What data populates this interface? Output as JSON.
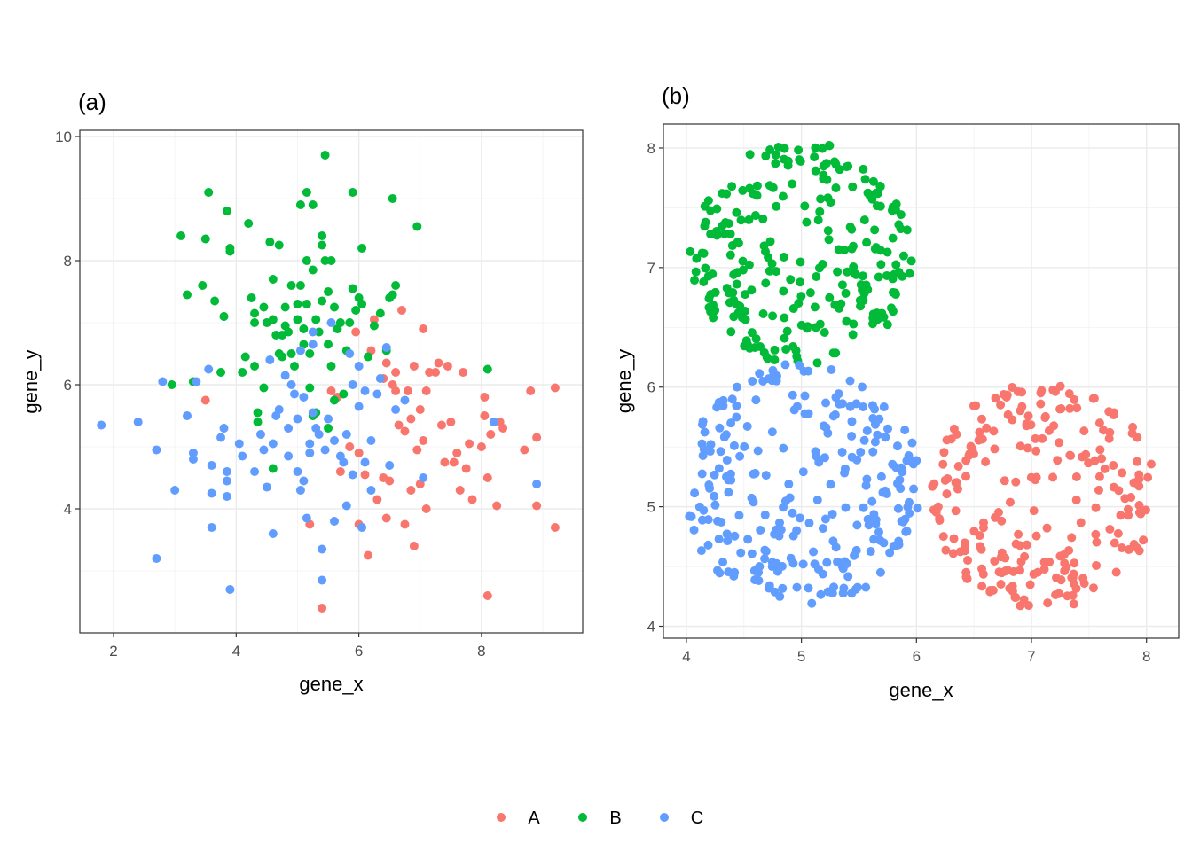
{
  "colors": {
    "A": "#F8766D",
    "B": "#00BA38",
    "C": "#619CFF"
  },
  "legend": {
    "items": [
      {
        "key": "A",
        "label": "A"
      },
      {
        "key": "B",
        "label": "B"
      },
      {
        "key": "C",
        "label": "C"
      }
    ],
    "position": "bottom"
  },
  "chart_data": [
    {
      "type": "scatter",
      "title": "(a)",
      "xlabel": "gene_x",
      "ylabel": "gene_y",
      "xlim": [
        1.45,
        9.65
      ],
      "ylim": [
        2.0,
        10.1
      ],
      "xticks": [
        2,
        4,
        6,
        8
      ],
      "yticks": [
        4,
        6,
        8,
        10
      ],
      "grid": true,
      "series": [
        {
          "name": "A",
          "points": [
            [
              3.5,
              5.75
            ],
            [
              5.4,
              2.4
            ],
            [
              5.2,
              3.75
            ],
            [
              6.0,
              3.75
            ],
            [
              6.15,
              3.25
            ],
            [
              5.55,
              5.9
            ],
            [
              5.65,
              5.8
            ],
            [
              5.7,
              4.6
            ],
            [
              5.85,
              5.0
            ],
            [
              5.95,
              6.85
            ],
            [
              6.0,
              4.9
            ],
            [
              6.1,
              4.55
            ],
            [
              6.25,
              7.05
            ],
            [
              6.3,
              4.15
            ],
            [
              6.4,
              4.5
            ],
            [
              6.45,
              3.85
            ],
            [
              6.45,
              6.35
            ],
            [
              6.5,
              4.45
            ],
            [
              6.6,
              6.2
            ],
            [
              6.6,
              5.9
            ],
            [
              6.65,
              5.35
            ],
            [
              6.7,
              7.2
            ],
            [
              6.75,
              5.25
            ],
            [
              6.75,
              3.75
            ],
            [
              6.8,
              5.9
            ],
            [
              6.85,
              5.45
            ],
            [
              6.85,
              4.3
            ],
            [
              6.9,
              3.4
            ],
            [
              6.9,
              6.3
            ],
            [
              6.95,
              4.95
            ],
            [
              7.0,
              5.6
            ],
            [
              7.0,
              4.4
            ],
            [
              7.05,
              6.9
            ],
            [
              7.05,
              5.1
            ],
            [
              7.1,
              5.9
            ],
            [
              7.1,
              4.0
            ],
            [
              7.25,
              6.2
            ],
            [
              7.3,
              6.35
            ],
            [
              7.35,
              5.35
            ],
            [
              7.4,
              4.75
            ],
            [
              7.45,
              6.3
            ],
            [
              7.5,
              5.4
            ],
            [
              7.55,
              4.75
            ],
            [
              7.6,
              4.9
            ],
            [
              7.65,
              4.3
            ],
            [
              7.7,
              6.2
            ],
            [
              7.75,
              4.65
            ],
            [
              7.8,
              5.05
            ],
            [
              7.85,
              4.15
            ],
            [
              8.0,
              5.0
            ],
            [
              8.05,
              5.8
            ],
            [
              8.05,
              5.5
            ],
            [
              8.1,
              2.6
            ],
            [
              8.1,
              4.5
            ],
            [
              8.15,
              5.2
            ],
            [
              8.25,
              4.05
            ],
            [
              8.3,
              5.4
            ],
            [
              8.35,
              5.3
            ],
            [
              8.7,
              4.95
            ],
            [
              8.8,
              5.9
            ],
            [
              8.9,
              5.15
            ],
            [
              8.9,
              4.05
            ],
            [
              9.2,
              5.95
            ],
            [
              9.2,
              3.7
            ],
            [
              6.2,
              6.55
            ],
            [
              6.55,
              6.0
            ],
            [
              7.15,
              6.2
            ],
            [
              6.4,
              6.1
            ]
          ]
        },
        {
          "name": "B",
          "points": [
            [
              2.95,
              6.0
            ],
            [
              3.1,
              8.4
            ],
            [
              3.2,
              7.45
            ],
            [
              3.3,
              6.05
            ],
            [
              3.45,
              7.6
            ],
            [
              3.5,
              8.35
            ],
            [
              3.55,
              9.1
            ],
            [
              3.65,
              7.35
            ],
            [
              3.75,
              6.2
            ],
            [
              3.8,
              7.1
            ],
            [
              3.85,
              8.8
            ],
            [
              3.9,
              8.2
            ],
            [
              3.9,
              8.15
            ],
            [
              4.1,
              6.2
            ],
            [
              4.15,
              6.45
            ],
            [
              4.2,
              8.6
            ],
            [
              4.25,
              7.4
            ],
            [
              4.3,
              7.15
            ],
            [
              4.3,
              7.0
            ],
            [
              4.3,
              6.3
            ],
            [
              4.35,
              5.55
            ],
            [
              4.35,
              5.4
            ],
            [
              4.45,
              5.95
            ],
            [
              4.45,
              7.25
            ],
            [
              4.5,
              7.0
            ],
            [
              4.55,
              8.3
            ],
            [
              4.6,
              7.7
            ],
            [
              4.6,
              7.05
            ],
            [
              4.6,
              4.65
            ],
            [
              4.65,
              6.8
            ],
            [
              4.7,
              8.25
            ],
            [
              4.7,
              6.5
            ],
            [
              4.75,
              6.8
            ],
            [
              4.75,
              6.45
            ],
            [
              4.8,
              7.25
            ],
            [
              4.8,
              6.95
            ],
            [
              4.85,
              6.85
            ],
            [
              4.9,
              7.6
            ],
            [
              4.9,
              6.5
            ],
            [
              4.95,
              6.3
            ],
            [
              5.0,
              7.3
            ],
            [
              5.0,
              7.05
            ],
            [
              5.05,
              8.9
            ],
            [
              5.05,
              7.6
            ],
            [
              5.1,
              6.9
            ],
            [
              5.15,
              9.1
            ],
            [
              5.15,
              8.0
            ],
            [
              5.15,
              7.3
            ],
            [
              5.2,
              6.5
            ],
            [
              5.2,
              5.95
            ],
            [
              5.25,
              8.9
            ],
            [
              5.25,
              7.85
            ],
            [
              5.3,
              7.05
            ],
            [
              5.3,
              5.55
            ],
            [
              5.35,
              6.85
            ],
            [
              5.4,
              8.4
            ],
            [
              5.4,
              8.25
            ],
            [
              5.4,
              7.35
            ],
            [
              5.45,
              9.7
            ],
            [
              5.45,
              8.0
            ],
            [
              5.5,
              7.5
            ],
            [
              5.5,
              6.65
            ],
            [
              5.55,
              8.0
            ],
            [
              5.55,
              6.3
            ],
            [
              5.6,
              7.25
            ],
            [
              5.6,
              5.75
            ],
            [
              5.65,
              6.9
            ],
            [
              5.7,
              7.0
            ],
            [
              5.75,
              5.85
            ],
            [
              5.8,
              6.55
            ],
            [
              5.85,
              7.0
            ],
            [
              5.9,
              7.55
            ],
            [
              5.9,
              9.1
            ],
            [
              5.95,
              7.2
            ],
            [
              6.0,
              7.4
            ],
            [
              6.05,
              8.2
            ],
            [
              6.05,
              7.3
            ],
            [
              6.15,
              6.45
            ],
            [
              6.25,
              6.95
            ],
            [
              6.35,
              7.15
            ],
            [
              6.45,
              6.55
            ],
            [
              6.5,
              7.4
            ],
            [
              6.55,
              9.0
            ],
            [
              6.55,
              7.45
            ],
            [
              6.6,
              7.6
            ],
            [
              6.95,
              8.55
            ],
            [
              8.1,
              6.25
            ],
            [
              5.25,
              5.5
            ],
            [
              5.1,
              6.65
            ],
            [
              5.5,
              5.3
            ]
          ]
        },
        {
          "name": "C",
          "points": [
            [
              1.8,
              5.35
            ],
            [
              2.4,
              5.4
            ],
            [
              2.7,
              3.2
            ],
            [
              2.7,
              4.95
            ],
            [
              2.8,
              6.05
            ],
            [
              3.0,
              4.3
            ],
            [
              3.2,
              5.5
            ],
            [
              3.3,
              4.9
            ],
            [
              3.3,
              4.8
            ],
            [
              3.35,
              6.05
            ],
            [
              3.55,
              6.25
            ],
            [
              3.6,
              4.7
            ],
            [
              3.6,
              4.25
            ],
            [
              3.6,
              3.7
            ],
            [
              3.75,
              5.15
            ],
            [
              3.8,
              5.3
            ],
            [
              3.85,
              4.6
            ],
            [
              3.85,
              4.45
            ],
            [
              3.85,
              4.2
            ],
            [
              3.9,
              2.7
            ],
            [
              4.05,
              5.05
            ],
            [
              4.1,
              4.85
            ],
            [
              4.3,
              4.6
            ],
            [
              4.4,
              5.2
            ],
            [
              4.45,
              4.95
            ],
            [
              4.5,
              4.35
            ],
            [
              4.55,
              6.4
            ],
            [
              4.6,
              5.05
            ],
            [
              4.6,
              3.6
            ],
            [
              4.65,
              5.5
            ],
            [
              4.7,
              5.6
            ],
            [
              4.8,
              6.15
            ],
            [
              4.85,
              4.85
            ],
            [
              4.85,
              5.3
            ],
            [
              4.9,
              6.0
            ],
            [
              4.95,
              5.85
            ],
            [
              5.0,
              5.45
            ],
            [
              5.0,
              4.6
            ],
            [
              5.05,
              4.3
            ],
            [
              5.1,
              5.8
            ],
            [
              5.1,
              4.45
            ],
            [
              5.15,
              3.85
            ],
            [
              5.2,
              5.05
            ],
            [
              5.2,
              4.9
            ],
            [
              5.25,
              5.55
            ],
            [
              5.25,
              6.65
            ],
            [
              5.3,
              5.3
            ],
            [
              5.35,
              5.2
            ],
            [
              5.4,
              3.35
            ],
            [
              5.4,
              2.85
            ],
            [
              5.45,
              4.95
            ],
            [
              5.5,
              5.45
            ],
            [
              5.55,
              7.0
            ],
            [
              5.6,
              5.1
            ],
            [
              5.6,
              3.8
            ],
            [
              5.7,
              4.85
            ],
            [
              5.75,
              4.75
            ],
            [
              5.8,
              4.05
            ],
            [
              5.85,
              6.5
            ],
            [
              5.9,
              6.0
            ],
            [
              5.9,
              4.55
            ],
            [
              6.0,
              6.3
            ],
            [
              6.0,
              5.65
            ],
            [
              6.05,
              3.7
            ],
            [
              6.1,
              5.9
            ],
            [
              6.1,
              4.75
            ],
            [
              6.2,
              5.1
            ],
            [
              6.3,
              5.85
            ],
            [
              6.35,
              6.1
            ],
            [
              6.45,
              6.6
            ],
            [
              6.5,
              4.7
            ],
            [
              6.6,
              5.6
            ],
            [
              6.75,
              5.75
            ],
            [
              7.05,
              4.5
            ],
            [
              8.2,
              5.4
            ],
            [
              8.9,
              4.4
            ],
            [
              5.25,
              6.85
            ],
            [
              5.05,
              6.55
            ],
            [
              5.8,
              5.2
            ],
            [
              6.2,
              4.3
            ]
          ]
        }
      ]
    },
    {
      "type": "scatter",
      "title": "(b)",
      "xlabel": "gene_x",
      "ylabel": "gene_y",
      "xlim": [
        3.8,
        8.28
      ],
      "ylim": [
        3.9,
        8.2
      ],
      "xticks": [
        4,
        5,
        6,
        7,
        8
      ],
      "yticks": [
        4,
        5,
        6,
        7,
        8
      ],
      "grid": true,
      "clusters": [
        {
          "name": "A",
          "center": [
            7.1,
            5.1
          ],
          "radius": 0.98,
          "count": 230
        },
        {
          "name": "B",
          "center": [
            5.0,
            7.12
          ],
          "radius": 0.97,
          "count": 250
        },
        {
          "name": "C",
          "center": [
            5.0,
            5.18
          ],
          "radius": 1.05,
          "count": 260
        }
      ]
    }
  ]
}
